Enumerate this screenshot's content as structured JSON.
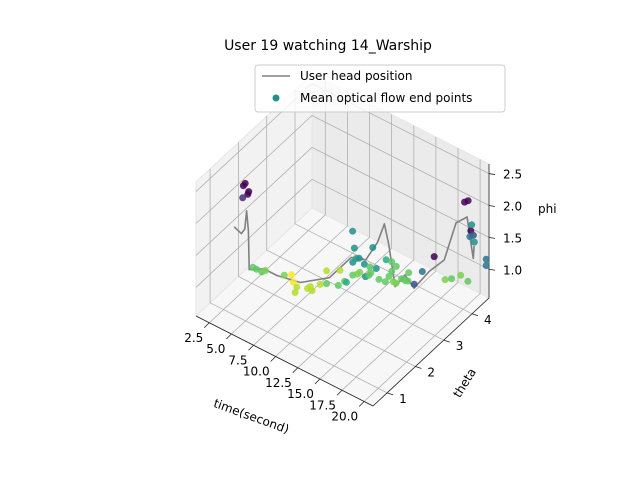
{
  "chart_data": {
    "type": "scatter",
    "title": "User 19 watching 14_Warship",
    "xlabel": "time(second)",
    "ylabel": "theta",
    "zlabel": "phi",
    "xlim": [
      1,
      21
    ],
    "ylim": [
      0.5,
      4.6
    ],
    "zlim": [
      0.55,
      2.65
    ],
    "xticks": [
      "2.5",
      "5.0",
      "7.5",
      "10.0",
      "12.5",
      "15.0",
      "17.5",
      "20.0"
    ],
    "yticks": [
      "1",
      "2",
      "3",
      "4"
    ],
    "zticks": [
      "1.0",
      "1.5",
      "2.0",
      "2.5"
    ],
    "legend": {
      "placement": "upper-right",
      "entries": [
        {
          "label": "User head position",
          "color": "#808080",
          "kind": "line"
        },
        {
          "label": "Mean optical flow end points",
          "color": "#21918c",
          "kind": "marker"
        }
      ]
    },
    "series": [
      {
        "name": "User head position",
        "kind": "line",
        "color": "#808080",
        "points": [
          [
            1.8,
            1.6,
            1.55
          ],
          [
            2.6,
            1.6,
            1.5
          ],
          [
            3.0,
            1.6,
            1.6
          ],
          [
            3.2,
            1.6,
            1.9
          ],
          [
            3.4,
            1.6,
            1.6
          ],
          [
            3.5,
            1.6,
            1.0
          ],
          [
            4.5,
            1.8,
            1.0
          ],
          [
            6.0,
            1.8,
            1.0
          ],
          [
            8.0,
            2.0,
            0.95
          ],
          [
            10.0,
            2.4,
            1.0
          ],
          [
            11.5,
            2.7,
            1.3
          ],
          [
            12.5,
            2.9,
            1.25
          ],
          [
            13.5,
            3.0,
            1.55
          ],
          [
            14.3,
            3.0,
            1.9
          ],
          [
            14.8,
            3.0,
            1.6
          ],
          [
            15.5,
            3.0,
            1.0
          ],
          [
            16.3,
            3.1,
            1.2
          ],
          [
            17.0,
            3.2,
            1.0
          ],
          [
            17.8,
            3.5,
            1.2
          ],
          [
            18.5,
            3.8,
            1.3
          ],
          [
            19.2,
            4.0,
            1.85
          ],
          [
            19.8,
            4.2,
            1.9
          ],
          [
            20.2,
            4.2,
            1.55
          ],
          [
            20.5,
            4.2,
            1.3
          ],
          [
            20.6,
            4.2,
            1.5
          ]
        ]
      },
      {
        "name": "Mean optical flow end points",
        "kind": "scatter",
        "points": [
          [
            3.0,
            1.55,
            2.3,
            "#440154"
          ],
          [
            3.2,
            1.55,
            2.35,
            "#440154"
          ],
          [
            3.5,
            1.55,
            2.2,
            "#440154"
          ],
          [
            3.6,
            1.55,
            2.25,
            "#440154"
          ],
          [
            3.4,
            1.4,
            2.2,
            "#472d7b"
          ],
          [
            19.2,
            4.3,
            2.05,
            "#440154"
          ],
          [
            19.6,
            4.3,
            2.1,
            "#440154"
          ],
          [
            19.9,
            4.3,
            1.65,
            "#440154"
          ],
          [
            20.2,
            4.3,
            1.6,
            "#3b528b"
          ],
          [
            20.0,
            4.3,
            1.75,
            "#21918c"
          ],
          [
            20.3,
            4.3,
            1.5,
            "#21918c"
          ],
          [
            19.8,
            4.3,
            1.55,
            "#2c728e"
          ],
          [
            12.3,
            2.5,
            1.85,
            "#21918c"
          ],
          [
            12.5,
            2.5,
            1.6,
            "#21918c"
          ],
          [
            12.7,
            2.5,
            1.45,
            "#27ad81"
          ],
          [
            12.4,
            2.7,
            1.35,
            "#21918c"
          ],
          [
            13.0,
            2.7,
            1.3,
            "#21918c"
          ],
          [
            12.8,
            2.8,
            1.05,
            "#21918c"
          ],
          [
            13.6,
            2.7,
            1.3,
            "#5ec962"
          ],
          [
            13.3,
            2.9,
            1.5,
            "#21918c"
          ],
          [
            14.5,
            3.0,
            1.35,
            "#27ad81"
          ],
          [
            14.5,
            3.1,
            1.05,
            "#5ec962"
          ],
          [
            14.8,
            3.1,
            1.15,
            "#5ec962"
          ],
          [
            14.8,
            3.1,
            1.3,
            "#5ec962"
          ],
          [
            15.0,
            3.1,
            1.0,
            "#7ad151"
          ],
          [
            15.3,
            3.1,
            1.0,
            "#7ad151"
          ],
          [
            15.0,
            3.2,
            1.2,
            "#5ec962"
          ],
          [
            15.6,
            3.2,
            1.05,
            "#5ec962"
          ],
          [
            16.0,
            3.2,
            1.05,
            "#5ec962"
          ],
          [
            16.4,
            3.2,
            1.2,
            "#5ec962"
          ],
          [
            16.7,
            3.3,
            1.0,
            "#3b528b"
          ],
          [
            17.3,
            3.4,
            1.2,
            "#2c728e"
          ],
          [
            18.0,
            3.6,
            1.4,
            "#440154"
          ],
          [
            18.6,
            3.8,
            1.0,
            "#7ad151"
          ],
          [
            19.0,
            3.9,
            1.0,
            "#5ec962"
          ],
          [
            19.4,
            4.1,
            1.0,
            "#7ad151"
          ],
          [
            19.9,
            4.2,
            0.9,
            "#5ec962"
          ],
          [
            21.0,
            4.5,
            1.1,
            "#2c728e"
          ],
          [
            21.0,
            4.5,
            1.2,
            "#2c728e"
          ],
          [
            3.6,
            1.7,
            1.0,
            "#5ec962"
          ],
          [
            4.0,
            1.7,
            1.0,
            "#5ec962"
          ],
          [
            4.6,
            1.7,
            1.0,
            "#5ec962"
          ],
          [
            5.0,
            1.7,
            1.05,
            "#7ad151"
          ],
          [
            6.5,
            1.9,
            1.0,
            "#7ad151"
          ],
          [
            7.0,
            2.0,
            1.0,
            "#fde725"
          ],
          [
            7.2,
            2.0,
            0.9,
            "#fde725"
          ],
          [
            7.6,
            2.0,
            0.85,
            "#b5de2b"
          ],
          [
            7.4,
            2.0,
            0.75,
            "#b5de2b"
          ],
          [
            8.5,
            2.1,
            0.85,
            "#b5de2b"
          ],
          [
            8.8,
            2.1,
            0.9,
            "#b5de2b"
          ],
          [
            9.0,
            2.1,
            0.85,
            "#b5de2b"
          ],
          [
            9.6,
            2.2,
            0.95,
            "#b5de2b"
          ],
          [
            10.0,
            2.3,
            0.95,
            "#5ec962"
          ],
          [
            11.0,
            2.4,
            0.95,
            "#5ec962"
          ],
          [
            11.4,
            2.5,
            1.0,
            "#5ec962"
          ],
          [
            11.2,
            2.4,
            1.2,
            "#b5de2b"
          ],
          [
            10.0,
            2.3,
            1.15,
            "#b5de2b"
          ],
          [
            11.6,
            2.5,
            1.0,
            "#27ad81"
          ],
          [
            12.0,
            2.6,
            1.1,
            "#5ec962"
          ],
          [
            12.5,
            2.6,
            1.15,
            "#7ad151"
          ],
          [
            12.8,
            2.6,
            1.2,
            "#7ad151"
          ],
          [
            13.2,
            2.8,
            1.1,
            "#5ec962"
          ],
          [
            13.4,
            2.8,
            1.15,
            "#5ec962"
          ],
          [
            14.0,
            2.9,
            1.05,
            "#5ec962"
          ],
          [
            14.4,
            3.0,
            1.0,
            "#5ec962"
          ],
          [
            16.0,
            3.3,
            1.0,
            "#5ec962"
          ],
          [
            12.0,
            2.6,
            1.3,
            "#21918c"
          ],
          [
            13.7,
            2.9,
            1.2,
            "#21918c"
          ]
        ]
      }
    ]
  }
}
